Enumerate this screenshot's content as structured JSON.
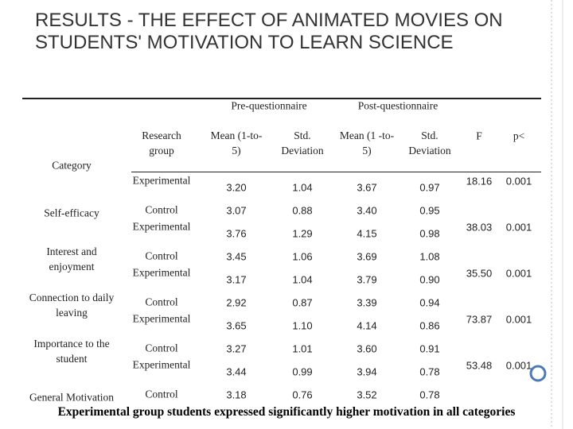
{
  "title": "RESULTS - THE EFFECT OF ANIMATED MOVIES ON STUDENTS' MOTIVATION TO LEARN SCIENCE",
  "table": {
    "group_headers": [
      "Pre-questionnaire",
      "Post-questionnaire"
    ],
    "columns": [
      "Category",
      "Research group",
      "Mean (1-to-5)",
      "Std. Deviation",
      "Mean (1 -to-5)",
      "Std. Deviation",
      "F",
      "p<"
    ],
    "rows": [
      {
        "category": "Self-efficacy",
        "F": "18.16",
        "p": "0.001",
        "groups": [
          {
            "group": "Experimental",
            "pre_mean": "3.20",
            "pre_sd": "1.04",
            "post_mean": "3.67",
            "post_sd": "0.97"
          },
          {
            "group": "Control",
            "pre_mean": "3.07",
            "pre_sd": "0.88",
            "post_mean": "3.40",
            "post_sd": "0.95"
          }
        ]
      },
      {
        "category": "Interest and enjoyment",
        "F": "38.03",
        "p": "0.001",
        "groups": [
          {
            "group": "Experimental",
            "pre_mean": "3.76",
            "pre_sd": "1.29",
            "post_mean": "4.15",
            "post_sd": "0.98"
          },
          {
            "group": "Control",
            "pre_mean": "3.45",
            "pre_sd": "1.06",
            "post_mean": "3.69",
            "post_sd": "1.08"
          }
        ]
      },
      {
        "category": "Connection to daily leaving",
        "F": "35.50",
        "p": "0.001",
        "groups": [
          {
            "group": "Experimental",
            "pre_mean": "3.17",
            "pre_sd": "1.04",
            "post_mean": "3.79",
            "post_sd": "0.90"
          },
          {
            "group": "Control",
            "pre_mean": "2.92",
            "pre_sd": "0.87",
            "post_mean": "3.39",
            "post_sd": "0.94"
          }
        ]
      },
      {
        "category": "Importance to the student",
        "F": "73.87",
        "p": "0.001",
        "groups": [
          {
            "group": "Experimental",
            "pre_mean": "3.65",
            "pre_sd": "1.10",
            "post_mean": "4.14",
            "post_sd": "0.86"
          },
          {
            "group": "Control",
            "pre_mean": "3.27",
            "pre_sd": "1.01",
            "post_mean": "3.60",
            "post_sd": "0.91"
          }
        ]
      },
      {
        "category": "General Motivation",
        "F": "53.48",
        "p": "0.001",
        "groups": [
          {
            "group": "Experimental",
            "pre_mean": "3.44",
            "pre_sd": "0.99",
            "post_mean": "3.94",
            "post_sd": "0.78"
          },
          {
            "group": "Control",
            "pre_mean": "3.18",
            "pre_sd": "0.76",
            "post_mean": "3.52",
            "post_sd": "0.78"
          }
        ]
      }
    ]
  },
  "caption": "Experimental group students expressed significantly higher motivation in all categories"
}
